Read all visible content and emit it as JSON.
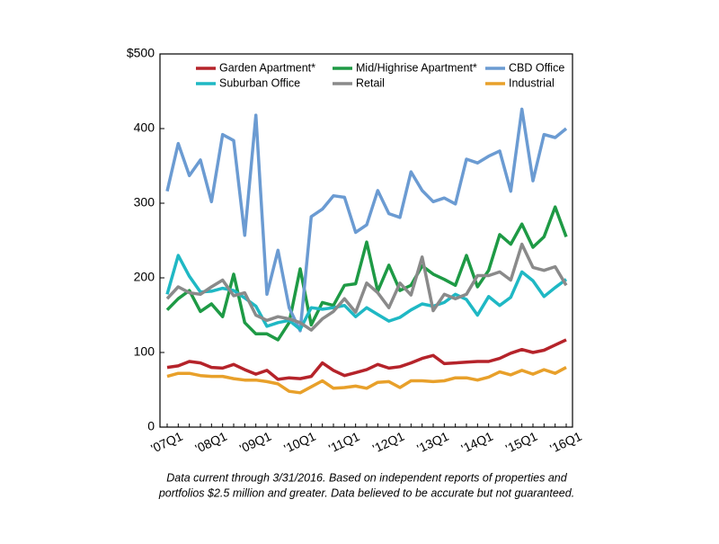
{
  "chart_data": {
    "type": "line",
    "categories": [
      "'07Q1",
      null,
      null,
      null,
      "'08Q1",
      null,
      null,
      null,
      "'09Q1",
      null,
      null,
      null,
      "'10Q1",
      null,
      null,
      null,
      "'11Q1",
      null,
      null,
      null,
      "'12Q1",
      null,
      null,
      null,
      "'13Q1",
      null,
      null,
      null,
      "'14Q1",
      null,
      null,
      null,
      "'15Q1",
      null,
      null,
      null,
      "'16Q1"
    ],
    "series": [
      {
        "name": "Garden Apartment*",
        "color": "#b5232a",
        "values": [
          80,
          82,
          88,
          86,
          80,
          79,
          84,
          77,
          71,
          76,
          64,
          66,
          65,
          68,
          86,
          76,
          69,
          73,
          77,
          84,
          79,
          81,
          86,
          92,
          96,
          85,
          86,
          87,
          88,
          88,
          92,
          99,
          104,
          100,
          103,
          110,
          117
        ]
      },
      {
        "name": "Mid/Highrise Apartment*",
        "color": "#1e9a45",
        "values": [
          157,
          172,
          183,
          155,
          165,
          148,
          205,
          140,
          125,
          125,
          117,
          140,
          212,
          137,
          167,
          163,
          190,
          192,
          248,
          182,
          217,
          183,
          190,
          216,
          205,
          198,
          190,
          230,
          188,
          210,
          258,
          245,
          272,
          241,
          255,
          295,
          255
        ]
      },
      {
        "name": "CBD Office",
        "color": "#6b9bd2",
        "values": [
          316,
          380,
          337,
          358,
          302,
          392,
          384,
          257,
          418,
          178,
          237,
          160,
          129,
          282,
          292,
          310,
          308,
          261,
          271,
          317,
          286,
          281,
          342,
          317,
          302,
          307,
          299,
          359,
          354,
          363,
          370,
          316,
          426,
          330,
          392,
          388,
          400
        ]
      },
      {
        "name": "Suburban Office",
        "color": "#1fb8c4",
        "values": [
          178,
          230,
          202,
          181,
          182,
          186,
          183,
          173,
          162,
          135,
          140,
          143,
          131,
          160,
          158,
          160,
          163,
          148,
          160,
          151,
          142,
          147,
          157,
          165,
          162,
          167,
          178,
          171,
          150,
          175,
          163,
          174,
          208,
          196,
          175,
          187,
          198
        ]
      },
      {
        "name": "Retail",
        "color": "#8a8a8a",
        "values": [
          172,
          188,
          180,
          178,
          188,
          197,
          176,
          180,
          150,
          143,
          148,
          145,
          140,
          130,
          145,
          155,
          172,
          154,
          193,
          180,
          160,
          193,
          177,
          228,
          156,
          178,
          172,
          178,
          203,
          203,
          208,
          197,
          245,
          214,
          210,
          215,
          190
        ]
      },
      {
        "name": "Industrial",
        "color": "#e8a02a",
        "values": [
          68,
          72,
          72,
          69,
          68,
          68,
          65,
          63,
          63,
          61,
          58,
          48,
          46,
          54,
          62,
          52,
          53,
          55,
          52,
          60,
          61,
          53,
          62,
          62,
          61,
          62,
          66,
          66,
          63,
          67,
          74,
          70,
          76,
          71,
          77,
          72,
          80
        ]
      }
    ],
    "ylim": [
      0,
      500
    ],
    "yticks": [
      0,
      100,
      200,
      300,
      400,
      {
        "value": 500,
        "label": "$500"
      }
    ],
    "legend": "top",
    "note": [
      "Data current through 3/31/2016. Based on independent reports of properties and",
      "portfolios $2.5 million and greater. Data believed to be accurate but not guaranteed."
    ]
  }
}
